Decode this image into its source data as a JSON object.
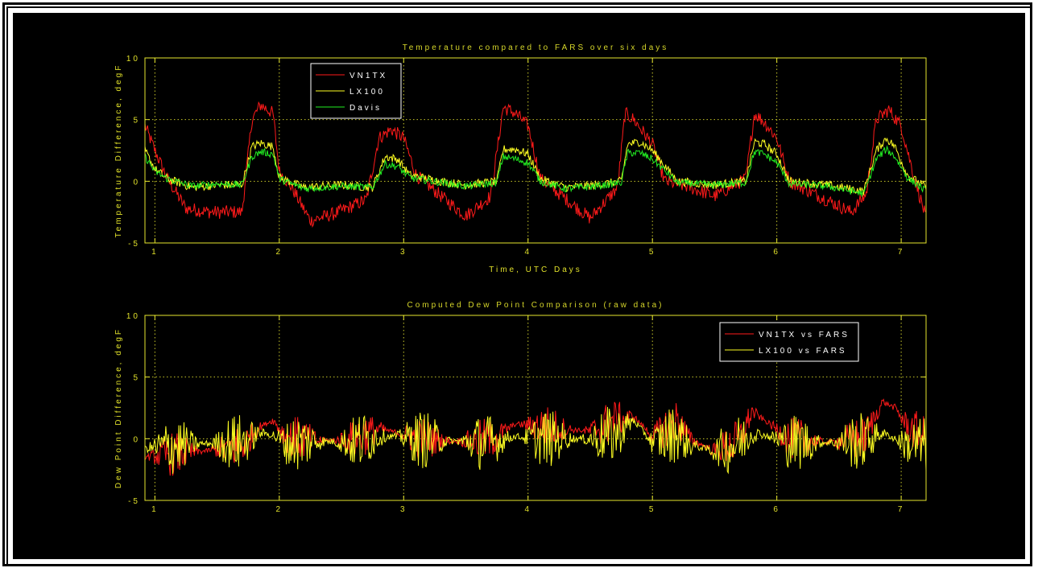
{
  "figure": {
    "background": "#000000",
    "axis_color": "#e6e62e",
    "grid_color": "#c8c82a"
  },
  "chart_data": [
    {
      "type": "line",
      "title": "Temperature compared to FARS over six days",
      "xlabel": "Time, UTC Days",
      "ylabel": "Temperature Difference, degF",
      "xlim": [
        0.92,
        7.2
      ],
      "ylim": [
        -5,
        10
      ],
      "xticks": [
        "1",
        "2",
        "3",
        "4",
        "5",
        "6",
        "7"
      ],
      "yticks": [
        "-5",
        "0",
        "5",
        "10"
      ],
      "grid": true,
      "legend": "top-left",
      "series": [
        {
          "name": "VN1TX",
          "color": "#ff1a1a",
          "x": [
            0.92,
            1.0,
            1.1,
            1.25,
            1.45,
            1.7,
            1.78,
            1.85,
            1.95,
            2.0,
            2.1,
            2.25,
            2.45,
            2.7,
            2.8,
            2.9,
            3.0,
            3.1,
            3.3,
            3.5,
            3.7,
            3.8,
            3.9,
            4.0,
            4.1,
            4.25,
            4.5,
            4.72,
            4.78,
            4.85,
            5.0,
            5.1,
            5.3,
            5.5,
            5.75,
            5.82,
            5.9,
            6.0,
            6.1,
            6.3,
            6.6,
            6.72,
            6.8,
            6.9,
            7.0,
            7.1,
            7.2
          ],
          "y": [
            4.5,
            2.5,
            0.2,
            -2.2,
            -2.5,
            -2.5,
            5.0,
            6.2,
            5.5,
            0.8,
            -0.5,
            -3.2,
            -2.6,
            -1.5,
            3.5,
            4.2,
            3.5,
            0.5,
            -1.2,
            -2.8,
            -1.2,
            6.0,
            5.5,
            4.5,
            0.2,
            -1.0,
            -3.0,
            -0.5,
            5.5,
            5.0,
            3.0,
            0.0,
            -0.5,
            -1.2,
            0.2,
            5.5,
            4.8,
            3.5,
            0.0,
            -1.0,
            -2.5,
            -1.0,
            5.0,
            5.8,
            4.5,
            0.5,
            -3.0
          ]
        },
        {
          "name": "LX100",
          "color": "#ffff22",
          "x": [
            0.92,
            1.0,
            1.1,
            1.3,
            1.5,
            1.7,
            1.78,
            1.85,
            1.95,
            2.0,
            2.2,
            2.5,
            2.75,
            2.85,
            2.95,
            3.05,
            3.3,
            3.5,
            3.75,
            3.8,
            3.9,
            4.0,
            4.1,
            4.3,
            4.55,
            4.75,
            4.8,
            4.9,
            5.0,
            5.2,
            5.5,
            5.75,
            5.82,
            5.9,
            6.0,
            6.1,
            6.4,
            6.7,
            6.8,
            6.88,
            6.95,
            7.05,
            7.2
          ],
          "y": [
            2.5,
            1.0,
            0.2,
            -0.5,
            -0.3,
            -0.3,
            2.8,
            3.1,
            2.8,
            0.3,
            -0.5,
            -0.3,
            -0.5,
            2.0,
            1.8,
            0.5,
            0.0,
            -0.3,
            0.0,
            2.6,
            2.6,
            2.2,
            0.2,
            -0.5,
            -0.3,
            0.0,
            3.0,
            3.2,
            2.5,
            0.0,
            -0.3,
            0.0,
            3.2,
            3.0,
            2.2,
            0.0,
            -0.3,
            -0.8,
            2.5,
            3.5,
            2.8,
            0.5,
            -0.5
          ]
        },
        {
          "name": "Davis",
          "color": "#22ee22",
          "x": [
            0.92,
            1.0,
            1.1,
            1.3,
            1.5,
            1.7,
            1.78,
            1.85,
            1.95,
            2.0,
            2.2,
            2.5,
            2.75,
            2.85,
            2.95,
            3.05,
            3.3,
            3.5,
            3.75,
            3.8,
            3.9,
            4.0,
            4.1,
            4.3,
            4.55,
            4.75,
            4.8,
            4.9,
            5.0,
            5.2,
            5.5,
            5.75,
            5.82,
            5.9,
            6.0,
            6.1,
            6.4,
            6.7,
            6.8,
            6.88,
            6.95,
            7.05,
            7.2
          ],
          "y": [
            2.0,
            0.8,
            0.2,
            -0.4,
            -0.2,
            -0.3,
            2.0,
            2.4,
            2.2,
            0.2,
            -0.6,
            -0.4,
            -0.5,
            1.4,
            1.2,
            0.3,
            -0.1,
            -0.4,
            -0.1,
            2.0,
            1.8,
            1.5,
            0.0,
            -0.6,
            -0.4,
            -0.1,
            2.3,
            2.3,
            1.8,
            -0.1,
            -0.3,
            -0.1,
            2.4,
            2.2,
            1.5,
            -0.2,
            -0.4,
            -1.0,
            1.8,
            2.6,
            2.0,
            0.3,
            -0.8
          ]
        }
      ]
    },
    {
      "type": "line",
      "title": "Computed Dew Point Comparison (raw data)",
      "xlabel": "",
      "ylabel": "Dew Point Difference, degF",
      "xlim": [
        0.92,
        7.2
      ],
      "ylim": [
        -5,
        10
      ],
      "xticks": [
        "1",
        "2",
        "3",
        "4",
        "5",
        "6",
        "7"
      ],
      "yticks": [
        "-5",
        "0",
        "5",
        "10"
      ],
      "grid": true,
      "legend": "top-right",
      "series": [
        {
          "name": "VN1TX vs FARS",
          "color": "#ff1a1a",
          "x": [
            0.92,
            1.1,
            1.4,
            1.7,
            1.85,
            1.95,
            2.05,
            2.3,
            2.6,
            2.8,
            2.95,
            3.1,
            3.4,
            3.7,
            3.9,
            4.1,
            4.3,
            4.5,
            4.7,
            4.85,
            5.0,
            5.2,
            5.3,
            5.5,
            5.7,
            5.8,
            5.9,
            6.1,
            6.4,
            6.7,
            6.85,
            6.95,
            7.05,
            7.2
          ],
          "y": [
            -1.5,
            -1.3,
            -1.0,
            -0.6,
            1.0,
            1.5,
            0.2,
            -0.2,
            0.0,
            0.8,
            0.5,
            0.0,
            -0.2,
            -0.1,
            1.2,
            1.0,
            0.8,
            0.6,
            1.5,
            1.8,
            0.2,
            1.5,
            0.0,
            -1.0,
            -0.2,
            2.2,
            1.5,
            0.0,
            -0.3,
            0.0,
            3.0,
            2.5,
            1.0,
            0.0
          ]
        },
        {
          "name": "LX100 vs FARS",
          "color": "#ffff22",
          "x": [
            0.92,
            1.1,
            1.4,
            1.7,
            1.85,
            1.95,
            2.05,
            2.3,
            2.6,
            2.8,
            2.95,
            3.1,
            3.4,
            3.7,
            3.9,
            4.1,
            4.3,
            4.5,
            4.7,
            4.85,
            5.0,
            5.2,
            5.3,
            5.5,
            5.7,
            5.8,
            5.9,
            6.1,
            6.4,
            6.7,
            6.85,
            6.95,
            7.05,
            7.2
          ],
          "y": [
            -0.8,
            -0.6,
            -0.4,
            -0.3,
            0.5,
            0.3,
            -0.4,
            -0.2,
            -0.3,
            0.2,
            0.2,
            0.0,
            -0.2,
            -0.3,
            0.2,
            0.0,
            0.0,
            0.0,
            0.3,
            1.5,
            -0.3,
            0.5,
            -0.5,
            -1.0,
            -0.3,
            0.5,
            0.3,
            -0.3,
            -0.3,
            -0.2,
            0.5,
            0.0,
            -0.5,
            -0.6
          ]
        }
      ]
    }
  ]
}
